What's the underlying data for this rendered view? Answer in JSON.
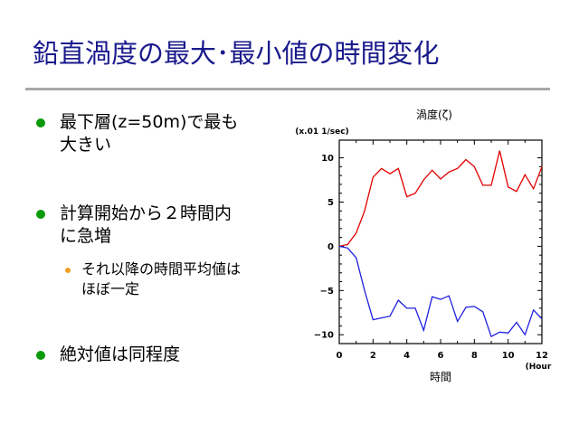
{
  "slide": {
    "title": "鉛直渦度の最大･最小値の時間変化",
    "bullets": [
      {
        "line1": "最下層(z=50m)で最も",
        "line2": "大きい"
      },
      {
        "line1": "計算開始から２時間内",
        "line2": "に急増"
      },
      {
        "line1": "絶対値は同程度"
      }
    ],
    "sub_bullet": {
      "line1": "それ以降の時間平均値は",
      "line2": "ほぼ一定"
    }
  },
  "chart_data": {
    "type": "line",
    "title": "渦度(ζ)",
    "unit_label": "(x.01 1/sec)",
    "xlabel": "時間",
    "xunit": "(Hour)",
    "xlim": [
      0,
      12
    ],
    "ylim": [
      -11,
      12
    ],
    "x_ticks": [
      0,
      2,
      4,
      6,
      8,
      10,
      12
    ],
    "y_ticks": [
      -10,
      -5,
      0,
      5,
      10
    ],
    "grid": false,
    "series": [
      {
        "color": "#e00000",
        "x": [
          0,
          0.5,
          1,
          1.5,
          2,
          2.5,
          3,
          3.5,
          4,
          4.5,
          5,
          5.5,
          6,
          6.5,
          7,
          7.5,
          8,
          8.5,
          9,
          9.5,
          10,
          10.5,
          11,
          11.5,
          12
        ],
        "y": [
          0,
          0.2,
          1.5,
          4,
          7.8,
          8.8,
          8.2,
          8.8,
          5.6,
          6,
          7.5,
          8.6,
          7.6,
          8.4,
          8.8,
          9.8,
          9,
          6.9,
          6.9,
          10.8,
          6.7,
          6.2,
          8.1,
          6.5,
          9
        ]
      },
      {
        "color": "#2020e0",
        "x": [
          0,
          0.5,
          1,
          1.5,
          2,
          2.5,
          3,
          3.5,
          4,
          4.5,
          5,
          5.5,
          6,
          6.5,
          7,
          7.5,
          8,
          8.5,
          9,
          9.5,
          10,
          10.5,
          11,
          11.5,
          12
        ],
        "y": [
          0,
          -0.2,
          -1.3,
          -5,
          -8.3,
          -8.1,
          -7.9,
          -6.1,
          -7,
          -7,
          -9.5,
          -5.7,
          -6,
          -5.6,
          -8.5,
          -6.9,
          -6.8,
          -7.4,
          -10.2,
          -9.7,
          -9.8,
          -8.6,
          -10,
          -7.2,
          -8.2
        ]
      }
    ]
  }
}
